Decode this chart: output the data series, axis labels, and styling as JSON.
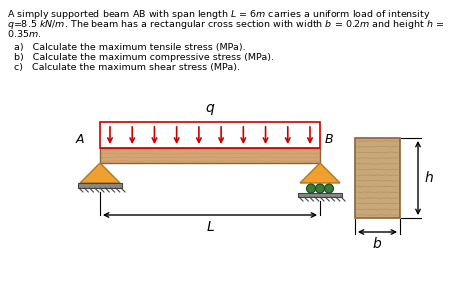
{
  "bg_color": "#ffffff",
  "beam_color": "#D4A574",
  "beam_dark": "#8B6340",
  "beam_grain": "#C09060",
  "support_color": "#F0A030",
  "support_dark": "#B07820",
  "ground_color": "#444444",
  "arrow_color": "#CC0000",
  "roller_color": "#3A7A3A",
  "wood_color": "#C8A878",
  "wood_grain": "#A88858",
  "text_color": "#000000",
  "line1": "A simply supported beam AB with span length $L$ = 6$m$ carries a uniform load of intensity",
  "line2": "$q$=8.5 $kN/m$. The beam has a rectangular cross section with width $b$ = 0.2$m$ and height $h$ =",
  "line3": "0.35$m$.",
  "qa": "a)   Calculate the maximum tensile stress (MPa).",
  "qb": "b)   Calculate the maximum compressive stress (MPa).",
  "qc": "c)   Calculate the maximum shear stress (MPa)."
}
